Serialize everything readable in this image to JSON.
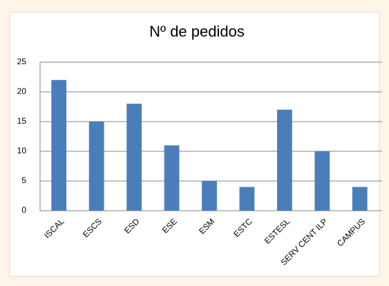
{
  "chart_data": {
    "type": "bar",
    "title": "Nº de pedidos",
    "categories": [
      "ISCAL",
      "ESCS",
      "ESD",
      "ESE",
      "ESM",
      "ESTC",
      "ESTESL",
      "SERV CENT ILP",
      "CAMPUS"
    ],
    "values": [
      22,
      15,
      18,
      11,
      5,
      4,
      17,
      10,
      4
    ],
    "color": "#4a7ebb",
    "ylim": [
      0,
      25
    ],
    "yticks": [
      0,
      5,
      10,
      15,
      20,
      25
    ],
    "grid": true
  }
}
